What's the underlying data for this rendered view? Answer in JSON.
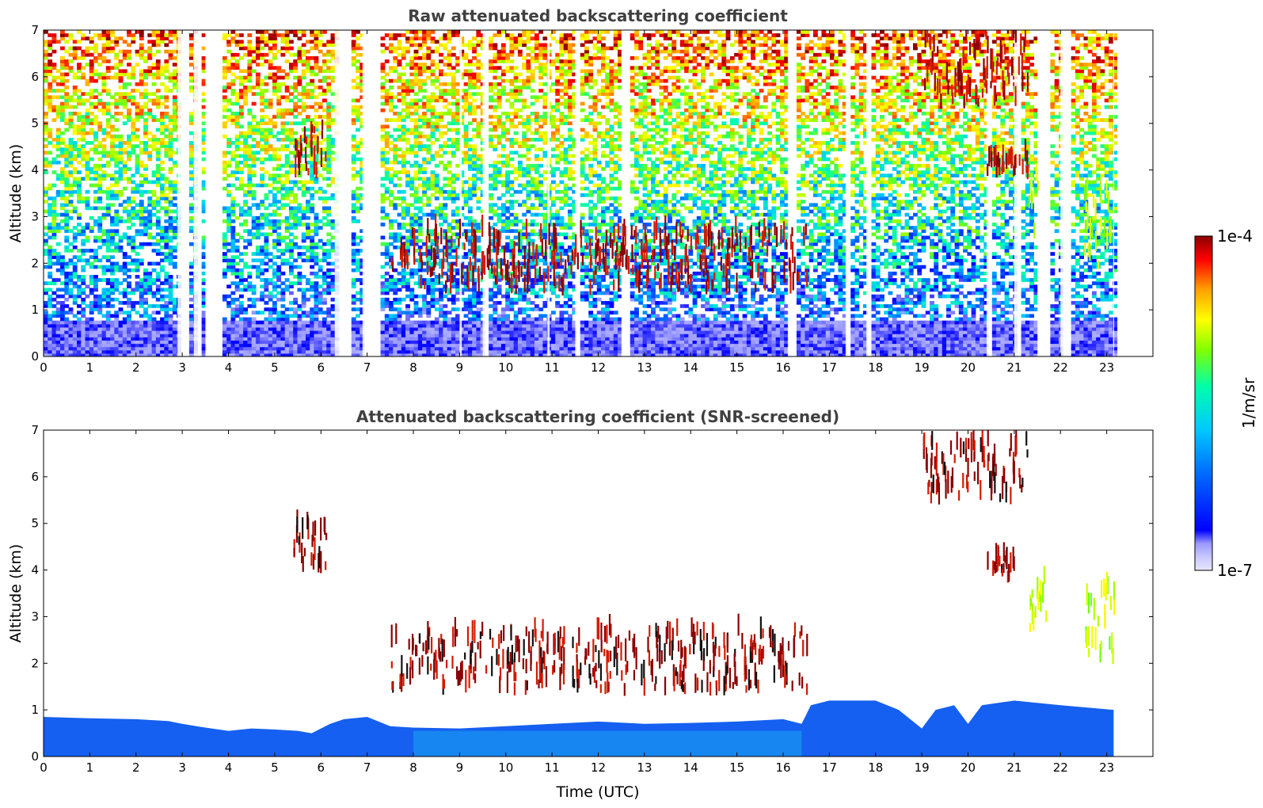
{
  "chart_data": [
    {
      "type": "heatmap",
      "title": "Raw attenuated backscattering coefficient",
      "xlabel": "",
      "ylabel": "Altitude (km)",
      "xlim": [
        0,
        24
      ],
      "ylim": [
        0,
        7
      ],
      "x_ticks": [
        "0",
        "1",
        "2",
        "3",
        "4",
        "5",
        "6",
        "7",
        "8",
        "9",
        "10",
        "11",
        "12",
        "13",
        "14",
        "15",
        "16",
        "17",
        "18",
        "19",
        "20",
        "21",
        "22",
        "23"
      ],
      "y_ticks": [
        "0",
        "1",
        "2",
        "3",
        "4",
        "5",
        "6",
        "7"
      ],
      "data_end_time_utc": 23.15,
      "data_gaps_utc": [
        [
          2.9,
          3.1
        ],
        [
          3.25,
          3.4
        ],
        [
          3.5,
          3.8
        ],
        [
          6.3,
          6.6
        ],
        [
          6.9,
          7.2
        ],
        [
          9.0,
          9.05
        ],
        [
          9.5,
          9.55
        ],
        [
          10.9,
          10.95
        ],
        [
          11.5,
          11.55
        ],
        [
          12.5,
          12.6
        ],
        [
          16.1,
          16.2
        ],
        [
          17.35,
          17.45
        ],
        [
          17.8,
          17.85
        ],
        [
          20.4,
          20.5
        ],
        [
          21.0,
          21.1
        ],
        [
          21.5,
          21.7
        ],
        [
          22.0,
          22.2
        ]
      ],
      "features": [
        {
          "kind": "boundary layer",
          "x_range": [
            0,
            23.15
          ],
          "y_range": [
            0,
            0.8
          ],
          "level": "low"
        },
        {
          "kind": "cloud layer",
          "x_range": [
            7.5,
            16.5
          ],
          "y_range": [
            1.3,
            2.6
          ],
          "level": "high"
        },
        {
          "kind": "cloud",
          "x_range": [
            5.4,
            6.1
          ],
          "y_range": [
            3.8,
            4.9
          ],
          "level": "high"
        },
        {
          "kind": "cloud",
          "x_range": [
            20.4,
            21.3
          ],
          "y_range": [
            3.8,
            4.2
          ],
          "level": "high"
        },
        {
          "kind": "cloud",
          "x_range": [
            21.3,
            21.5
          ],
          "y_range": [
            2.5,
            4.2
          ],
          "level": "medium"
        },
        {
          "kind": "cloud",
          "x_range": [
            22.5,
            23.15
          ],
          "y_range": [
            1.8,
            3.6
          ],
          "level": "medium"
        },
        {
          "kind": "cloud",
          "x_range": [
            19.0,
            21.3
          ],
          "y_range": [
            5.3,
            7.0
          ],
          "level": "high"
        }
      ]
    },
    {
      "type": "heatmap",
      "title": "Attenuated backscattering coefficient (SNR-screened)",
      "xlabel": "Time (UTC)",
      "ylabel": "Altitude (km)",
      "xlim": [
        0,
        24
      ],
      "ylim": [
        0,
        7
      ],
      "x_ticks": [
        "0",
        "1",
        "2",
        "3",
        "4",
        "5",
        "6",
        "7",
        "8",
        "9",
        "10",
        "11",
        "12",
        "13",
        "14",
        "15",
        "16",
        "17",
        "18",
        "19",
        "20",
        "21",
        "22",
        "23"
      ],
      "y_ticks": [
        "0",
        "1",
        "2",
        "3",
        "4",
        "5",
        "6",
        "7"
      ],
      "data_end_time_utc": 23.15,
      "boundary_layer_top_km": [
        [
          0,
          0.85
        ],
        [
          1,
          0.82
        ],
        [
          2,
          0.8
        ],
        [
          2.7,
          0.76
        ],
        [
          3,
          0.7
        ],
        [
          3.5,
          0.62
        ],
        [
          4,
          0.55
        ],
        [
          4.5,
          0.6
        ],
        [
          5,
          0.58
        ],
        [
          5.5,
          0.55
        ],
        [
          5.8,
          0.5
        ],
        [
          6.2,
          0.7
        ],
        [
          6.5,
          0.8
        ],
        [
          7,
          0.85
        ],
        [
          7.5,
          0.65
        ],
        [
          8,
          0.62
        ],
        [
          9,
          0.6
        ],
        [
          10,
          0.65
        ],
        [
          11,
          0.7
        ],
        [
          12,
          0.75
        ],
        [
          13,
          0.7
        ],
        [
          14,
          0.72
        ],
        [
          15,
          0.75
        ],
        [
          16,
          0.8
        ],
        [
          16.4,
          0.7
        ],
        [
          16.6,
          1.1
        ],
        [
          17,
          1.2
        ],
        [
          18,
          1.2
        ],
        [
          18.5,
          1.0
        ],
        [
          19,
          0.6
        ],
        [
          19.3,
          1.0
        ],
        [
          19.7,
          1.1
        ],
        [
          20,
          0.7
        ],
        [
          20.3,
          1.1
        ],
        [
          21,
          1.2
        ],
        [
          22,
          1.1
        ],
        [
          23.15,
          1.0
        ]
      ],
      "features": [
        {
          "kind": "cloud layer",
          "x_range": [
            7.5,
            16.5
          ],
          "y_range": [
            1.3,
            2.6
          ],
          "level": "high"
        },
        {
          "kind": "cloud",
          "x_range": [
            5.4,
            6.1
          ],
          "y_range": [
            3.8,
            4.9
          ],
          "level": "high"
        },
        {
          "kind": "cloud",
          "x_range": [
            20.4,
            21.0
          ],
          "y_range": [
            3.7,
            4.2
          ],
          "level": "high"
        },
        {
          "kind": "cloud",
          "x_range": [
            21.3,
            21.7
          ],
          "y_range": [
            2.6,
            3.8
          ],
          "level": "medium"
        },
        {
          "kind": "cloud",
          "x_range": [
            22.5,
            23.15
          ],
          "y_range": [
            1.8,
            3.6
          ],
          "level": "medium"
        },
        {
          "kind": "cloud",
          "x_range": [
            19.0,
            21.3
          ],
          "y_range": [
            5.4,
            6.7
          ],
          "level": "high"
        }
      ]
    }
  ],
  "colorbar": {
    "max_label": "1e-4",
    "min_label": "1e-7",
    "unit_label": "1/m/sr",
    "colors": [
      "#e6e6fa",
      "#c8c8ff",
      "#9a9aff",
      "#0000ff",
      "#0064ff",
      "#00c8ff",
      "#00ffaa",
      "#80ff00",
      "#ffff00",
      "#ffa000",
      "#ff0000",
      "#8b0000"
    ]
  }
}
